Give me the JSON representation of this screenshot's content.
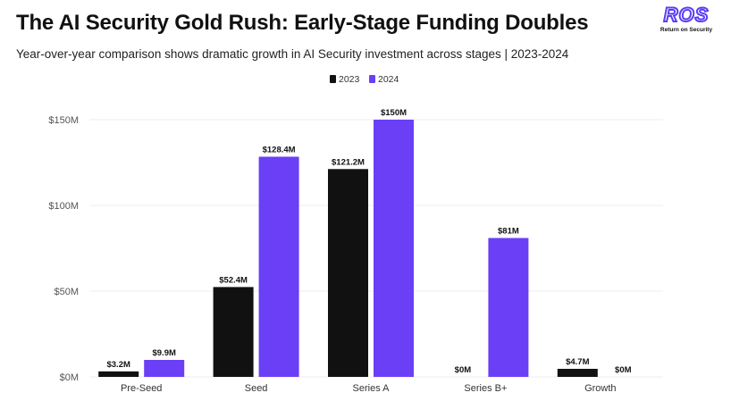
{
  "header": {
    "title": "The AI Security Gold Rush: Early-Stage Funding Doubles",
    "subtitle": "Year-over-year comparison shows dramatic growth in AI Security investment across stages | 2023-2024"
  },
  "logo": {
    "mark": "ROS",
    "tagline": "Return on Security"
  },
  "colors": {
    "series_2023": "#111111",
    "series_2024": "#6a3ff6",
    "grid": "#ececec",
    "brand": "#5b3df5"
  },
  "chart_data": {
    "type": "bar",
    "title": "The AI Security Gold Rush: Early-Stage Funding Doubles",
    "subtitle": "Year-over-year comparison shows dramatic growth in AI Security investment across stages | 2023-2024",
    "xlabel": "",
    "ylabel": "",
    "ylim": [
      0,
      150
    ],
    "yticks": [
      0,
      50,
      100,
      150
    ],
    "ytick_labels": [
      "$0M",
      "$50M",
      "$100M",
      "$150M"
    ],
    "grid": true,
    "legend_position": "top-center",
    "categories": [
      "Pre-Seed",
      "Seed",
      "Series A",
      "Series B+",
      "Growth"
    ],
    "series": [
      {
        "name": "2023",
        "values": [
          3.2,
          52.4,
          121.2,
          0,
          4.7
        ],
        "labels": [
          "$3.2M",
          "$52.4M",
          "$121.2M",
          "$0M",
          "$4.7M"
        ]
      },
      {
        "name": "2024",
        "values": [
          9.9,
          128.4,
          150,
          81,
          0
        ],
        "labels": [
          "$9.9M",
          "$128.4M",
          "$150M",
          "$81M",
          "$0M"
        ]
      }
    ]
  }
}
